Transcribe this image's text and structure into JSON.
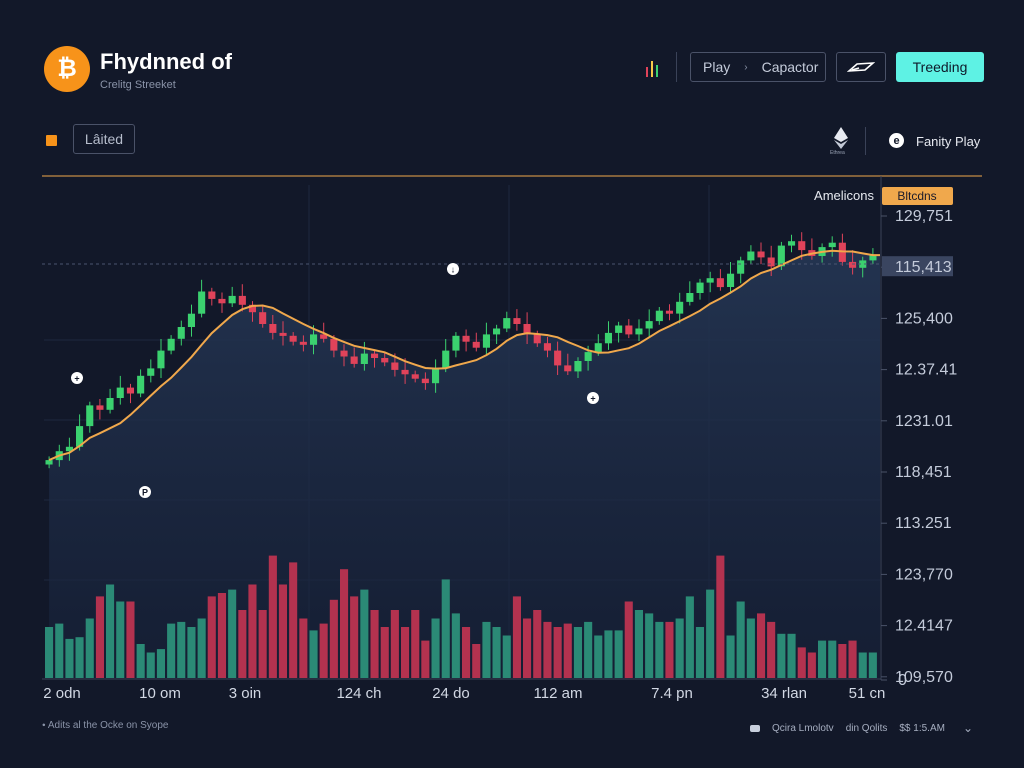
{
  "header": {
    "logo_symbol": "₿",
    "title": "Fhydnned of",
    "subtitle": "Crelitg Streeket",
    "play_label": "Play",
    "play_separator": "›",
    "capacitor_label": "Capactor",
    "trending_label": "Treeding"
  },
  "toolbar": {
    "latest_label": "Lâited",
    "eth_caption": "Ethrea",
    "fan_label": "Fanity Play",
    "fan_icon_glyph": "e"
  },
  "footer": {
    "left_text": "Adits al the Ocke on Syope",
    "right_items": [
      "Qcira Lmolotv",
      "din Qolits",
      "$$ 1:5.AM"
    ]
  },
  "colors": {
    "accent": "#f7931a",
    "up": "#3bd16f",
    "down": "#e0435a",
    "vol_up": "#2b8a76",
    "vol_down": "#b3324f",
    "ma_line": "#f0a84c",
    "trend_button": "#5ef2e4"
  },
  "chart_data": {
    "type": "candlestick",
    "series_labels": {
      "line_label": "Amelicons",
      "highlight_label": "Bltcdns"
    },
    "y_ticks": [
      "129,751",
      "115,413",
      "125,400",
      "12.37.41",
      "1231.01",
      "118,451",
      "113.251",
      "123,770",
      "12.4147",
      "109,570",
      "0"
    ],
    "y_tick_values": [
      129751,
      115413,
      125400,
      123741,
      123101,
      118451,
      113251,
      123770,
      124147,
      109570,
      0
    ],
    "x_ticks": [
      "2 odn",
      "10 om",
      "3 oin",
      "124 ch",
      "24 do",
      "112 am",
      "7.4 pn",
      "34 rlan",
      "51 cn"
    ],
    "price_range": [
      110500,
      131800
    ],
    "close": [
      113200,
      113800,
      114100,
      115500,
      116900,
      116600,
      117400,
      118100,
      117700,
      118900,
      119400,
      120600,
      121400,
      122200,
      123100,
      124600,
      124100,
      123800,
      124300,
      123700,
      123200,
      122400,
      121800,
      121600,
      121200,
      121000,
      121700,
      121400,
      120600,
      120200,
      119700,
      120400,
      120100,
      119800,
      119300,
      119000,
      118700,
      118400,
      119400,
      120600,
      121600,
      121200,
      120800,
      121700,
      122100,
      122800,
      122400,
      121700,
      121100,
      120600,
      119600,
      119200,
      119900,
      120500,
      121100,
      121800,
      122300,
      121700,
      122100,
      122600,
      123300,
      123100,
      123900,
      124500,
      125200,
      125500,
      124900,
      125800,
      126700,
      127300,
      126900,
      126300,
      127700,
      128000,
      127400,
      127000,
      127600,
      127900,
      126600,
      126200,
      126700,
      127100
    ],
    "volume_max": 100,
    "volume": [
      30,
      32,
      23,
      24,
      35,
      48,
      55,
      45,
      45,
      20,
      15,
      17,
      32,
      33,
      30,
      35,
      48,
      50,
      52,
      40,
      55,
      40,
      72,
      55,
      68,
      35,
      28,
      32,
      46,
      64,
      48,
      52,
      40,
      30,
      40,
      30,
      40,
      22,
      35,
      58,
      38,
      30,
      20,
      33,
      30,
      25,
      48,
      35,
      40,
      33,
      30,
      32,
      30,
      33,
      25,
      28,
      28,
      45,
      40,
      38,
      33,
      33,
      35,
      48,
      30,
      52,
      72,
      25,
      45,
      35,
      38,
      33,
      26,
      26,
      18,
      15,
      22,
      22,
      20,
      22,
      15,
      15
    ]
  }
}
